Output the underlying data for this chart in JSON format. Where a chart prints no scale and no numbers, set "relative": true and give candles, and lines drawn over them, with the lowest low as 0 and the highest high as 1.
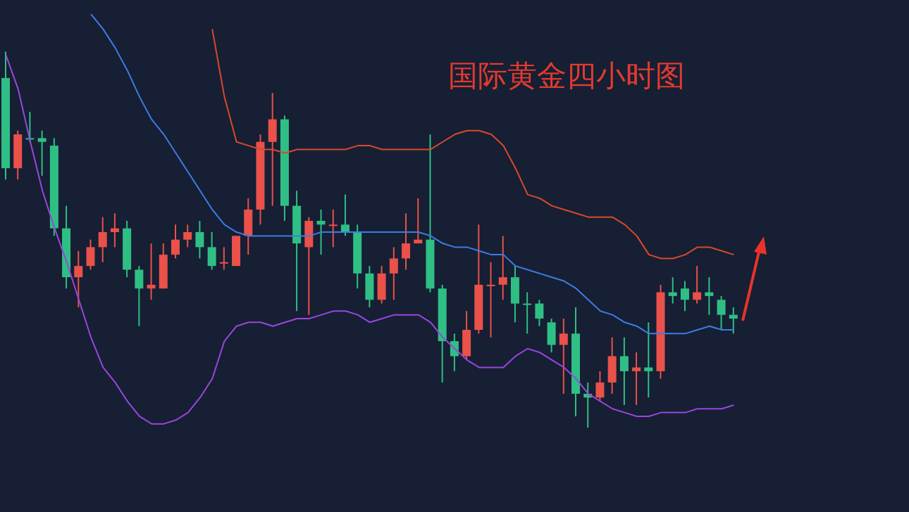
{
  "chart_data": {
    "type": "candlestick",
    "title": "国际黄金四小时图",
    "relative": true,
    "tick_labels": false,
    "categories": [
      null,
      null,
      null,
      null,
      null,
      null,
      null,
      null,
      null,
      null,
      null,
      null,
      null,
      null,
      null,
      null,
      null,
      null,
      null,
      null,
      null,
      null,
      null,
      null,
      null,
      null,
      null,
      null,
      null,
      null,
      null,
      null,
      null,
      null,
      null,
      null,
      null,
      null,
      null,
      null,
      null,
      null,
      null,
      null,
      null,
      null,
      null,
      null,
      null,
      null,
      null,
      null,
      null,
      null,
      null,
      null,
      null,
      null,
      null,
      null,
      null
    ],
    "ohlc": [
      [
        0.93,
        1,
        0.66,
        0.69
      ],
      [
        0.69,
        0.79,
        0.66,
        0.78
      ],
      [
        0.77,
        0.84,
        0.76,
        0.77
      ],
      [
        0.77,
        0.79,
        0.67,
        0.76
      ],
      [
        0.75,
        0.77,
        0.51,
        0.53
      ],
      [
        0.53,
        0.59,
        0.37,
        0.4
      ],
      [
        0.4,
        0.47,
        0.32,
        0.43
      ],
      [
        0.43,
        0.5,
        0.42,
        0.48
      ],
      [
        0.48,
        0.56,
        0.44,
        0.52
      ],
      [
        0.52,
        0.57,
        0.48,
        0.53
      ],
      [
        0.53,
        0.55,
        0.4,
        0.42
      ],
      [
        0.42,
        0.43,
        0.27,
        0.37
      ],
      [
        0.37,
        0.49,
        0.34,
        0.38
      ],
      [
        0.37,
        0.49,
        0.37,
        0.46
      ],
      [
        0.46,
        0.54,
        0.45,
        0.5
      ],
      [
        0.5,
        0.54,
        0.48,
        0.52
      ],
      [
        0.52,
        0.55,
        0.45,
        0.48
      ],
      [
        0.48,
        0.52,
        0.42,
        0.43
      ],
      [
        0.44,
        0.48,
        0.42,
        0.44
      ],
      [
        0.43,
        0.51,
        0.43,
        0.51
      ],
      [
        0.51,
        0.61,
        0.46,
        0.58
      ],
      [
        0.58,
        0.78,
        0.54,
        0.76
      ],
      [
        0.76,
        0.89,
        0.59,
        0.82
      ],
      [
        0.82,
        0.83,
        0.55,
        0.59
      ],
      [
        0.59,
        0.63,
        0.31,
        0.49
      ],
      [
        0.48,
        0.56,
        0.3,
        0.55
      ],
      [
        0.55,
        0.58,
        0.46,
        0.54
      ],
      [
        0.54,
        0.58,
        0.48,
        0.54
      ],
      [
        0.54,
        0.62,
        0.51,
        0.52
      ],
      [
        0.52,
        0.54,
        0.37,
        0.41
      ],
      [
        0.41,
        0.43,
        0.32,
        0.34
      ],
      [
        0.34,
        0.43,
        0.33,
        0.41
      ],
      [
        0.41,
        0.48,
        0.34,
        0.45
      ],
      [
        0.45,
        0.57,
        0.42,
        0.49
      ],
      [
        0.49,
        0.61,
        0.49,
        0.5
      ],
      [
        0.5,
        0.78,
        0.36,
        0.37
      ],
      [
        0.37,
        0.38,
        0.12,
        0.23
      ],
      [
        0.23,
        0.25,
        0.15,
        0.19
      ],
      [
        0.19,
        0.31,
        0.18,
        0.26
      ],
      [
        0.26,
        0.54,
        0.25,
        0.38
      ],
      [
        0.38,
        0.44,
        0.24,
        0.38
      ],
      [
        0.38,
        0.51,
        0.34,
        0.4
      ],
      [
        0.4,
        0.43,
        0.28,
        0.33
      ],
      [
        0.33,
        0.36,
        0.25,
        0.33
      ],
      [
        0.33,
        0.34,
        0.27,
        0.29
      ],
      [
        0.28,
        0.29,
        0.2,
        0.22
      ],
      [
        0.22,
        0.29,
        0.09,
        0.25
      ],
      [
        0.25,
        0.32,
        0.03,
        0.09
      ],
      [
        0.09,
        0.12,
        0,
        0.08
      ],
      [
        0.08,
        0.15,
        0.07,
        0.12
      ],
      [
        0.12,
        0.24,
        0.09,
        0.19
      ],
      [
        0.19,
        0.24,
        0.06,
        0.15
      ],
      [
        0.15,
        0.2,
        0.06,
        0.16
      ],
      [
        0.16,
        0.28,
        0.08,
        0.15
      ],
      [
        0.15,
        0.38,
        0.13,
        0.36
      ],
      [
        0.36,
        0.4,
        0.33,
        0.35
      ],
      [
        0.37,
        0.39,
        0.31,
        0.34
      ],
      [
        0.34,
        0.43,
        0.33,
        0.36
      ],
      [
        0.36,
        0.4,
        0.3,
        0.35
      ],
      [
        0.34,
        0.35,
        0.26,
        0.3
      ],
      [
        0.3,
        0.32,
        0.25,
        0.29
      ]
    ],
    "colors": [
      "#2fbf85",
      "#e9514a",
      "#2fbf85",
      "#2fbf85",
      "#2fbf85",
      "#2fbf85",
      "#e9514a",
      "#e9514a",
      "#e9514a",
      "#e9514a",
      "#2fbf85",
      "#2fbf85",
      "#e9514a",
      "#e9514a",
      "#e9514a",
      "#e9514a",
      "#2fbf85",
      "#2fbf85",
      "#e9514a",
      "#e9514a",
      "#e9514a",
      "#e9514a",
      "#e9514a",
      "#2fbf85",
      "#2fbf85",
      "#e9514a",
      "#2fbf85",
      "#e9514a",
      "#2fbf85",
      "#2fbf85",
      "#2fbf85",
      "#e9514a",
      "#e9514a",
      "#e9514a",
      "#e9514a",
      "#2fbf85",
      "#2fbf85",
      "#2fbf85",
      "#e9514a",
      "#e9514a",
      "#e9514a",
      "#e9514a",
      "#2fbf85",
      "#2fbf85",
      "#2fbf85",
      "#2fbf85",
      "#e9514a",
      "#2fbf85",
      "#2fbf85",
      "#e9514a",
      "#e9514a",
      "#2fbf85",
      "#e9514a",
      "#2fbf85",
      "#e9514a",
      "#2fbf85",
      "#2fbf85",
      "#e9514a",
      "#2fbf85",
      "#2fbf85",
      "#2fbf85"
    ],
    "series": [
      {
        "type": "line",
        "color": "#d9482e",
        "values": [
          null,
          null,
          null,
          null,
          null,
          null,
          null,
          null,
          null,
          null,
          null,
          null,
          null,
          null,
          null,
          null,
          null,
          1.06,
          0.88,
          0.76,
          0.75,
          0.74,
          0.74,
          0.73,
          0.74,
          0.74,
          0.74,
          0.74,
          0.74,
          0.75,
          0.75,
          0.74,
          0.74,
          0.74,
          0.74,
          0.74,
          0.76,
          0.78,
          0.79,
          0.79,
          0.78,
          0.75,
          0.69,
          0.62,
          0.61,
          0.59,
          0.58,
          0.57,
          0.56,
          0.56,
          0.56,
          0.54,
          0.51,
          0.46,
          0.45,
          0.45,
          0.46,
          0.48,
          0.48,
          0.47,
          0.46
        ]
      },
      {
        "type": "line",
        "color": "#3e7be6",
        "values": [
          null,
          null,
          null,
          null,
          null,
          null,
          null,
          1.1,
          1.06,
          1.01,
          0.95,
          0.88,
          0.82,
          0.78,
          0.73,
          0.68,
          0.63,
          0.58,
          0.54,
          0.52,
          0.51,
          0.51,
          0.51,
          0.51,
          0.51,
          0.51,
          0.52,
          0.52,
          0.52,
          0.52,
          0.52,
          0.52,
          0.52,
          0.52,
          0.52,
          0.51,
          0.49,
          0.48,
          0.48,
          0.47,
          0.46,
          0.46,
          0.43,
          0.42,
          0.41,
          0.4,
          0.39,
          0.37,
          0.34,
          0.31,
          0.3,
          0.28,
          0.27,
          0.25,
          0.25,
          0.25,
          0.25,
          0.26,
          0.27,
          0.26,
          0.26
        ]
      },
      {
        "type": "line",
        "color": "#9b45e0",
        "values": [
          0.99,
          0.9,
          0.76,
          0.63,
          0.53,
          0.44,
          0.34,
          0.24,
          0.16,
          0.12,
          0.07,
          0.03,
          0.01,
          0.01,
          0.02,
          0.04,
          0.08,
          0.13,
          0.23,
          0.27,
          0.28,
          0.28,
          0.27,
          0.28,
          0.29,
          0.29,
          0.3,
          0.31,
          0.31,
          0.3,
          0.28,
          0.29,
          0.3,
          0.3,
          0.3,
          0.28,
          0.24,
          0.21,
          0.18,
          0.16,
          0.16,
          0.16,
          0.19,
          0.21,
          0.2,
          0.18,
          0.16,
          0.13,
          0.09,
          0.07,
          0.05,
          0.04,
          0.03,
          0.03,
          0.04,
          0.04,
          0.04,
          0.05,
          0.05,
          0.05,
          0.06
        ]
      }
    ]
  }
}
